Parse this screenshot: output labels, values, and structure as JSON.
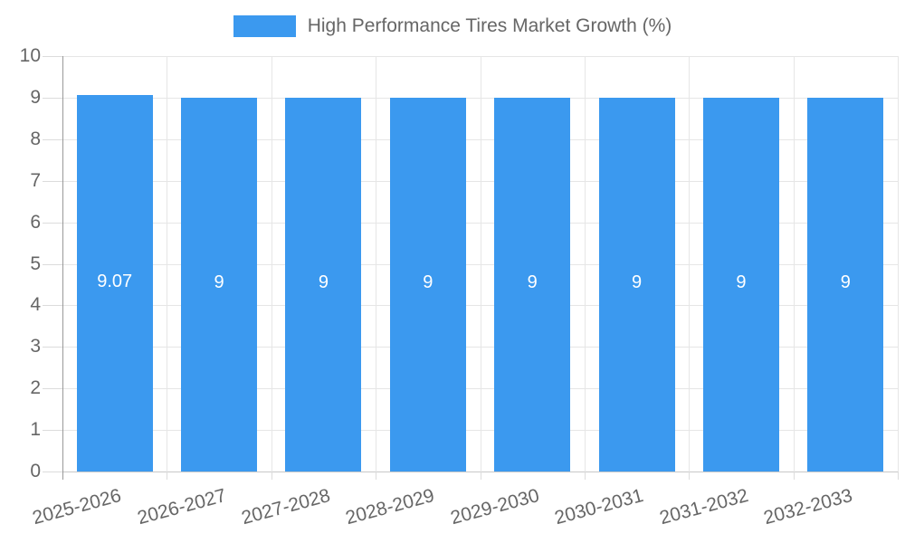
{
  "chart_data": {
    "type": "bar",
    "title": "High Performance Tires Market Growth (%)",
    "legend": {
      "label": "High Performance Tires Market Growth (%)",
      "position": "top"
    },
    "categories": [
      "2025-2026",
      "2026-2027",
      "2027-2028",
      "2028-2029",
      "2029-2030",
      "2030-2031",
      "2031-2032",
      "2032-2033"
    ],
    "values": [
      9.07,
      9,
      9,
      9,
      9,
      9,
      9,
      9
    ],
    "bar_labels": [
      "9.07",
      "9",
      "9",
      "9",
      "9",
      "9",
      "9",
      "9"
    ],
    "xlabel": "",
    "ylabel": "",
    "ylim": [
      0,
      10
    ],
    "yticks": [
      0,
      1,
      2,
      3,
      4,
      5,
      6,
      7,
      8,
      9,
      10
    ],
    "grid": true,
    "colors": {
      "bar": "#3B99EF",
      "bar_label": "#FFFFFF",
      "axis_line": "#999999",
      "bottom_line": "#C8C8C8",
      "grid_line": "#E6E6E6",
      "tick_mark": "#DCDCDC",
      "tick_text": "#666666",
      "legend_text": "#666666",
      "background": "#FFFFFF"
    }
  }
}
